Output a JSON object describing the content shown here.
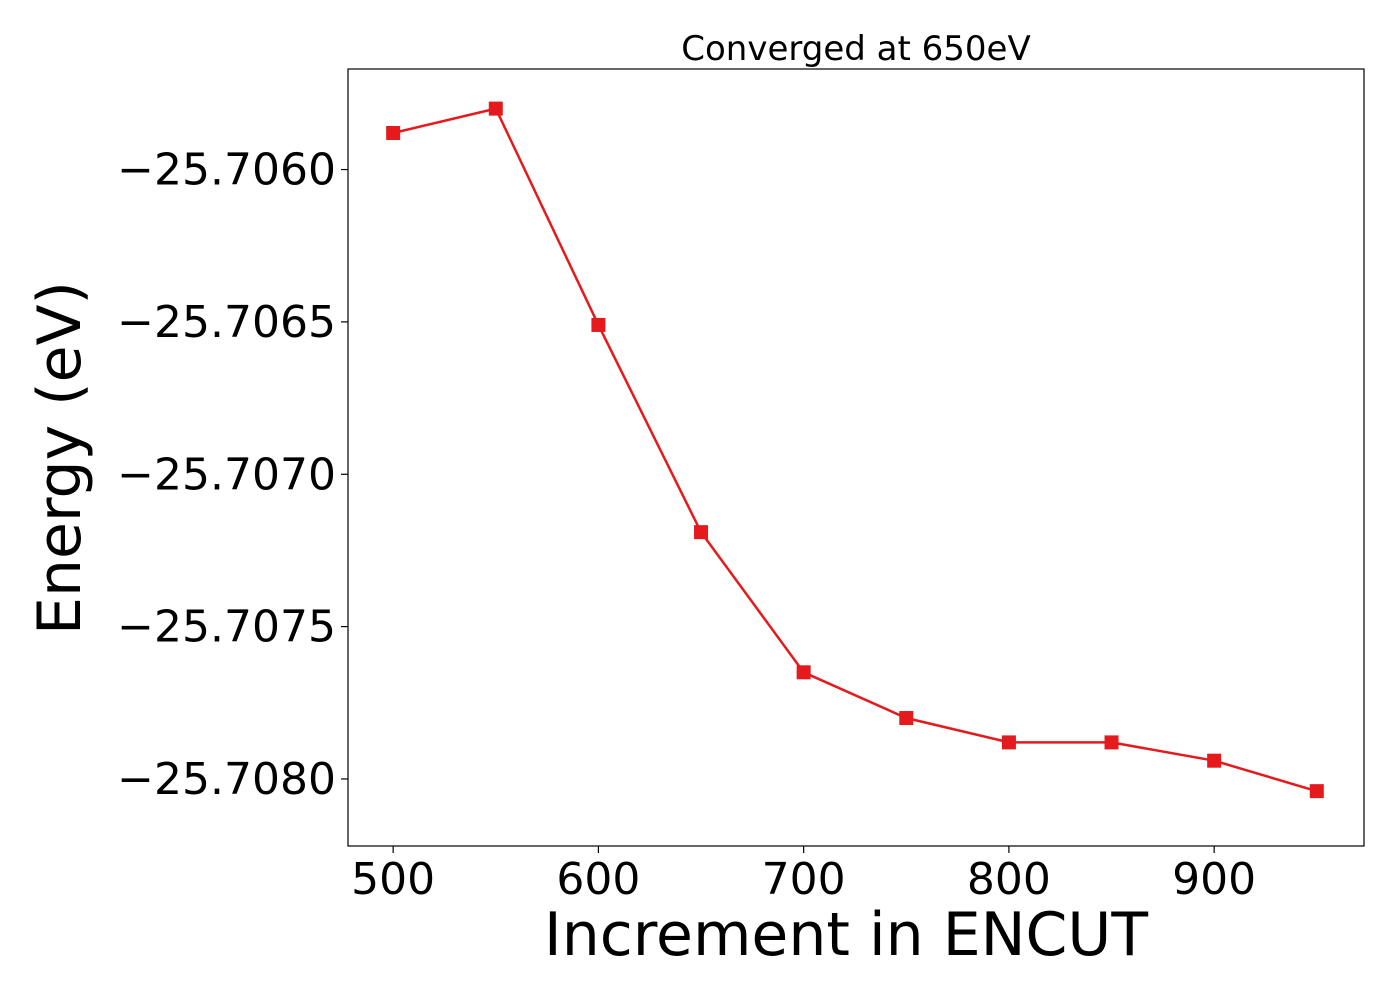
{
  "chart_data": {
    "type": "line",
    "title": "Converged at 650eV",
    "xlabel": "Increment in ENCUT",
    "ylabel": "Energy (eV)",
    "x": [
      500,
      550,
      600,
      650,
      700,
      750,
      800,
      850,
      900,
      950
    ],
    "x_ticks": [
      500,
      600,
      700,
      800,
      900
    ],
    "x_tick_labels": [
      "500",
      "600",
      "700",
      "800",
      "900"
    ],
    "xlim": [
      478,
      973
    ],
    "y_ticks": [
      -25.706,
      -25.7065,
      -25.707,
      -25.7075,
      -25.708
    ],
    "y_tick_labels": [
      "−25.7060",
      "−25.7065",
      "−25.7070",
      "−25.7075",
      "−25.7080"
    ],
    "ylim": [
      -25.70822,
      -25.70567
    ],
    "grid": false,
    "series": [
      {
        "values": [
          -25.70588,
          -25.7058,
          -25.70651,
          -25.70719,
          -25.70765,
          -25.7078,
          -25.70788,
          -25.70788,
          -25.70794,
          -25.70804
        ],
        "color": "#e41a1c",
        "marker": "square"
      }
    ]
  }
}
